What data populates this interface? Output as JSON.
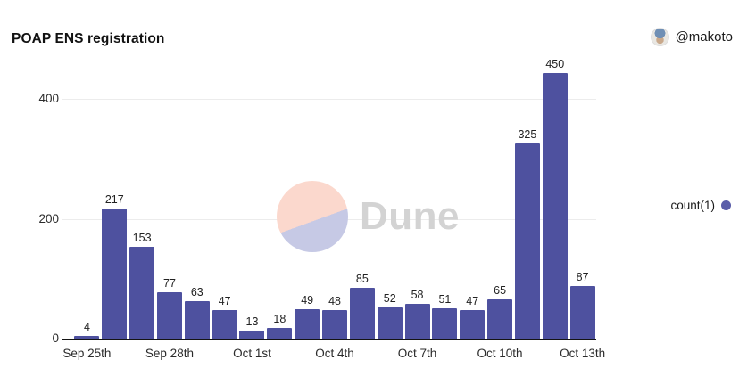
{
  "header": {
    "title": "POAP ENS registration",
    "author_handle": "@makoto"
  },
  "legend": {
    "label": "count(1)",
    "dot_color": "#5a5da9"
  },
  "watermark": {
    "text": "Dune"
  },
  "colors": {
    "bar": "#4e519f",
    "axis": "#141414",
    "grid": "#ececec",
    "text": "#222222",
    "watermark_top": "#fbd8cd",
    "watermark_bottom": "#c6c9e5",
    "watermark_text": "#d3d3d3"
  },
  "chart_data": {
    "type": "bar",
    "title": "POAP ENS registration",
    "categories": [
      "Sep 25",
      "Sep 26",
      "Sep 27",
      "Sep 28",
      "Sep 29",
      "Sep 30",
      "Oct 1",
      "Oct 2",
      "Oct 3",
      "Oct 4",
      "Oct 5",
      "Oct 6",
      "Oct 7",
      "Oct 8",
      "Oct 9",
      "Oct 10",
      "Oct 11",
      "Oct 12",
      "Oct 13"
    ],
    "series": [
      {
        "name": "count(1)",
        "values": [
          4,
          217,
          153,
          77,
          63,
          47,
          13,
          18,
          49,
          48,
          85,
          52,
          58,
          51,
          47,
          65,
          325,
          450,
          87
        ]
      }
    ],
    "x_tick_labels": [
      "Sep 25th",
      "Sep 28th",
      "Oct 1st",
      "Oct 4th",
      "Oct 7th",
      "Oct 10th",
      "Oct 13th"
    ],
    "x_tick_bar_indices": [
      0,
      3,
      6,
      9,
      12,
      15,
      18
    ],
    "y_ticks": [
      0,
      200,
      400
    ],
    "ylim": [
      0,
      475
    ],
    "grid": "horizontal",
    "legend_position": "right",
    "bar_labels_shown": true
  }
}
